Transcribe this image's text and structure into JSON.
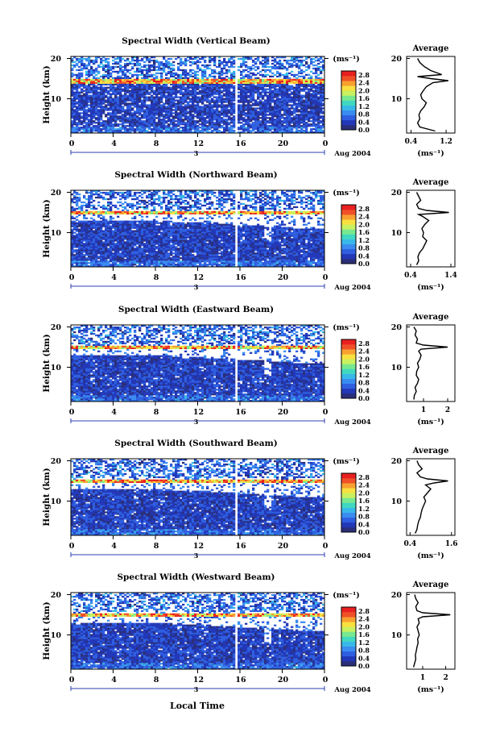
{
  "figure": {
    "xlabel": "Local Time",
    "date_label": "Aug 2004",
    "day_label": "3",
    "unit_label": "(ms⁻¹)",
    "height_label": "Height (km)"
  },
  "colors": {
    "colormap": [
      "#2b2f7a",
      "#2238b8",
      "#2f5fe0",
      "#3a8cf0",
      "#38b8e8",
      "#40d8c0",
      "#78e890",
      "#c8f060",
      "#f8e040",
      "#f8a030",
      "#f05028",
      "#e82020"
    ],
    "background": "#ffffff",
    "data_gap": "#ffffff"
  },
  "chart_data": [
    {
      "type": "heatmap",
      "title": "Spectral Width (Vertical Beam)",
      "ylabel": "Height (km)",
      "x_ticks": [
        "0",
        "4",
        "8",
        "12",
        "16",
        "20",
        "0"
      ],
      "xlim": [
        0,
        24
      ],
      "y_ticks": [
        "20",
        "10"
      ],
      "ylim": [
        1.5,
        20.5
      ],
      "colorbar": {
        "label": "(ms⁻¹)",
        "ticks": [
          "2.8",
          "2.4",
          "2.0",
          "1.6",
          "1.2",
          "0.8",
          "0.4",
          "0.0"
        ],
        "range": [
          0,
          3.0
        ]
      },
      "gap_time": 15.6,
      "gap2_time": 18.6,
      "bright_band_km": 14.5,
      "average": {
        "title": "Average",
        "xlabel": "(ms⁻¹)",
        "x_ticks": [
          "0.4",
          "1.2"
        ],
        "xlim": [
          0.3,
          1.4
        ],
        "y_ticks": [
          "20",
          "10"
        ],
        "heights": [
          2,
          3,
          4,
          5,
          6,
          7,
          8,
          9,
          10,
          11,
          12,
          13,
          14,
          14.5,
          15,
          15.5,
          16,
          17,
          18,
          19,
          20
        ],
        "values": [
          0.95,
          0.6,
          0.55,
          0.6,
          0.58,
          0.62,
          0.7,
          0.75,
          0.65,
          0.62,
          0.68,
          0.75,
          0.9,
          1.25,
          0.85,
          0.55,
          1.1,
          0.85,
          0.7,
          0.6,
          0.55
        ]
      }
    },
    {
      "type": "heatmap",
      "title": "Spectral Width (Northward Beam)",
      "ylabel": "Height (km)",
      "x_ticks": [
        "0",
        "4",
        "8",
        "12",
        "16",
        "20",
        "0"
      ],
      "xlim": [
        0,
        24
      ],
      "y_ticks": [
        "20",
        "10"
      ],
      "ylim": [
        1.5,
        20.5
      ],
      "colorbar": {
        "label": "(ms⁻¹)",
        "ticks": [
          "2.8",
          "2.4",
          "2.0",
          "1.6",
          "1.2",
          "0.8",
          "0.4",
          "0.0"
        ],
        "range": [
          0,
          3.0
        ]
      },
      "gap_time": 15.6,
      "gap2_time": 18.6,
      "bright_band_km": 15.0,
      "average": {
        "title": "Average",
        "xlabel": "(ms⁻¹)",
        "x_ticks": [
          "0.4",
          "1.4"
        ],
        "xlim": [
          0.3,
          1.5
        ],
        "y_ticks": [
          "20",
          "10"
        ],
        "heights": [
          2,
          3,
          4,
          5,
          6,
          7,
          8,
          9,
          10,
          11,
          12,
          13,
          14,
          14.5,
          15,
          15.5,
          16,
          17,
          18,
          19,
          20
        ],
        "values": [
          0.55,
          0.6,
          0.58,
          0.62,
          0.7,
          0.75,
          0.8,
          0.7,
          0.72,
          0.68,
          0.75,
          0.85,
          0.7,
          0.6,
          1.35,
          0.8,
          0.6,
          0.55,
          0.65,
          0.6,
          0.55
        ]
      }
    },
    {
      "type": "heatmap",
      "title": "Spectral Width (Eastward Beam)",
      "ylabel": "Height (km)",
      "x_ticks": [
        "0",
        "4",
        "8",
        "12",
        "16",
        "20",
        "0"
      ],
      "xlim": [
        0,
        24
      ],
      "y_ticks": [
        "20",
        "10"
      ],
      "ylim": [
        1.5,
        20.5
      ],
      "colorbar": {
        "label": "(ms⁻¹)",
        "ticks": [
          "2.8",
          "2.4",
          "2.0",
          "1.6",
          "1.2",
          "0.8",
          "0.4",
          "0.0"
        ],
        "range": [
          0,
          3.0
        ]
      },
      "gap_time": 15.6,
      "gap2_time": 18.6,
      "bright_band_km": 15.0,
      "average": {
        "title": "Average",
        "xlabel": "(ms⁻¹)",
        "x_ticks": [
          "1",
          "2"
        ],
        "xlim": [
          0.3,
          2.3
        ],
        "y_ticks": [
          "20",
          "10"
        ],
        "heights": [
          2,
          3,
          4,
          5,
          6,
          7,
          8,
          9,
          10,
          11,
          12,
          13,
          14,
          14.5,
          15,
          15.5,
          16,
          17,
          18,
          19,
          20
        ],
        "values": [
          0.6,
          0.62,
          0.7,
          0.65,
          0.75,
          0.8,
          0.7,
          0.72,
          0.8,
          0.75,
          0.85,
          0.9,
          0.8,
          0.9,
          2.0,
          1.0,
          0.7,
          0.75,
          0.65,
          0.7,
          0.6
        ]
      }
    },
    {
      "type": "heatmap",
      "title": "Spectral Width (Southward Beam)",
      "ylabel": "Height (km)",
      "x_ticks": [
        "0",
        "4",
        "8",
        "12",
        "16",
        "20",
        "0"
      ],
      "xlim": [
        0,
        24
      ],
      "y_ticks": [
        "20",
        "10"
      ],
      "ylim": [
        1.5,
        20.5
      ],
      "colorbar": {
        "label": "(ms⁻¹)",
        "ticks": [
          "2.8",
          "2.4",
          "2.0",
          "1.6",
          "1.2",
          "0.8",
          "0.4",
          "0.0"
        ],
        "range": [
          0,
          3.0
        ]
      },
      "gap_time": 15.6,
      "gap2_time": 18.6,
      "bright_band_km": 15.0,
      "average": {
        "title": "Average",
        "xlabel": "(ms⁻¹)",
        "x_ticks": [
          "0.4",
          "1.6"
        ],
        "xlim": [
          0.3,
          1.7
        ],
        "y_ticks": [
          "20",
          "10"
        ],
        "heights": [
          2,
          3,
          4,
          5,
          6,
          7,
          8,
          9,
          10,
          11,
          12,
          13,
          14,
          14.5,
          15,
          15.5,
          16,
          17,
          18,
          19,
          20
        ],
        "values": [
          0.55,
          0.6,
          0.62,
          0.65,
          0.7,
          0.72,
          0.75,
          0.8,
          0.85,
          0.8,
          0.9,
          1.0,
          0.85,
          1.1,
          1.5,
          0.9,
          0.7,
          0.6,
          0.75,
          0.65,
          0.6
        ]
      }
    },
    {
      "type": "heatmap",
      "title": "Spectral Width (Westward Beam)",
      "ylabel": "Height (km)",
      "x_ticks": [
        "0",
        "4",
        "8",
        "12",
        "16",
        "20",
        "0"
      ],
      "xlim": [
        0,
        24
      ],
      "y_ticks": [
        "20",
        "10"
      ],
      "ylim": [
        1.5,
        20.5
      ],
      "colorbar": {
        "label": "(ms⁻¹)",
        "ticks": [
          "2.8",
          "2.4",
          "2.0",
          "1.6",
          "1.2",
          "0.8",
          "0.4",
          "0.0"
        ],
        "range": [
          0,
          3.0
        ]
      },
      "gap_time": 15.6,
      "gap2_time": 18.6,
      "bright_band_km": 15.0,
      "average": {
        "title": "Average",
        "xlabel": "(ms⁻¹)",
        "x_ticks": [
          "1",
          "2"
        ],
        "xlim": [
          0.3,
          2.4
        ],
        "y_ticks": [
          "20",
          "10"
        ],
        "heights": [
          2,
          3,
          4,
          5,
          6,
          7,
          8,
          9,
          10,
          11,
          12,
          13,
          14,
          14.5,
          15,
          15.5,
          16,
          17,
          18,
          19,
          20
        ],
        "values": [
          0.6,
          0.65,
          0.7,
          0.68,
          0.72,
          0.75,
          0.8,
          0.78,
          0.85,
          0.8,
          0.75,
          0.85,
          0.8,
          1.0,
          2.2,
          1.0,
          0.75,
          0.7,
          0.8,
          0.7,
          0.65
        ]
      }
    }
  ]
}
